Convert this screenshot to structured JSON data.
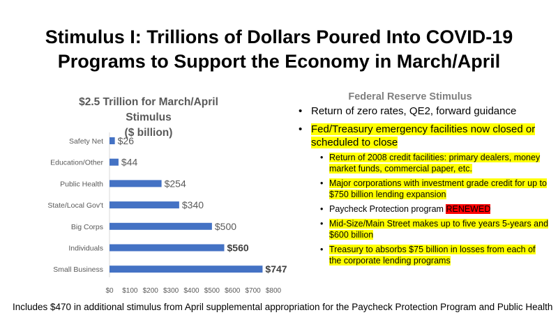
{
  "slide": {
    "title_lines": [
      "Stimulus I: Trillions of Dollars Poured Into COVID-19",
      "Programs to Support the Economy in March/April"
    ],
    "footnote": "Includes $470 in additional stimulus from April supplemental appropriation for the Paycheck Protection Program and Public Health"
  },
  "chart_data": {
    "type": "bar",
    "orientation": "horizontal",
    "title_lines": [
      "$2.5 Trillion for March/April Stimulus",
      "($ billion)"
    ],
    "categories": [
      "Safety Net",
      "Education/Other",
      "Public Health",
      "State/Local Gov't",
      "Big Corps",
      "Individuals",
      "Small Business"
    ],
    "values": [
      26,
      44,
      254,
      340,
      500,
      560,
      747
    ],
    "data_labels": [
      "$26",
      "$44",
      "$254",
      "$340",
      "$500",
      "$560",
      "$747"
    ],
    "bold_labels": [
      false,
      false,
      false,
      false,
      false,
      true,
      true
    ],
    "x_ticks": [
      "$0",
      "$100",
      "$200",
      "$300",
      "$400",
      "$500",
      "$600",
      "$700",
      "$800"
    ],
    "xlim": [
      0,
      800
    ],
    "grid": false,
    "bar_color": "#4472c4"
  },
  "fed_panel": {
    "heading": "Federal Reserve Stimulus",
    "item1": "Return of zero rates, QE2, forward guidance",
    "item2": "Fed/Treasury emergency facilities now closed or scheduled to close",
    "sub1": "Return of 2008 credit facilities: primary dealers, money market funds, commercial paper, etc.",
    "sub2": "Major corporations with investment grade credit for up to $750 billion lending expansion",
    "sub3_text": "Paycheck Protection program ",
    "sub3_badge": "RENEWED",
    "sub4": "Mid-Size/Main Street makes up to five years 5-years and $600 billion",
    "sub5": "Treasury to absorbs $75 billion in losses from each of the corporate lending programs",
    "highlight_color": "#ffff00",
    "badge_color": "#ff0000"
  }
}
